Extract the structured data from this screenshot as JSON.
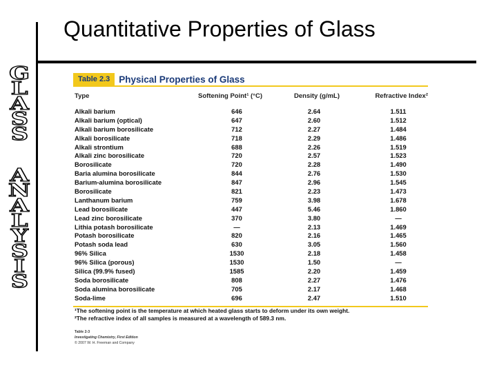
{
  "slide": {
    "title": "Quantitative Properties of Glass",
    "side_letters": [
      "G",
      "L",
      "A",
      "S",
      "S",
      "",
      "A",
      "N",
      "A",
      "L",
      "Y",
      "S",
      "I",
      "S"
    ]
  },
  "table": {
    "number": "Table 2.3",
    "title": "Physical Properties of Glass",
    "columns": [
      "Type",
      "Softening Point¹ (°C)",
      "Density (g/mL)",
      "Refractive Index²"
    ],
    "rows": [
      [
        "Alkali barium",
        "646",
        "2.64",
        "1.511"
      ],
      [
        "Alkali barium (optical)",
        "647",
        "2.60",
        "1.512"
      ],
      [
        "Alkali barium borosilicate",
        "712",
        "2.27",
        "1.484"
      ],
      [
        "Alkali borosilicate",
        "718",
        "2.29",
        "1.486"
      ],
      [
        "Alkali strontium",
        "688",
        "2.26",
        "1.519"
      ],
      [
        "Alkali zinc borosilicate",
        "720",
        "2.57",
        "1.523"
      ],
      [
        "Borosilicate",
        "720",
        "2.28",
        "1.490"
      ],
      [
        "Baria alumina borosilicate",
        "844",
        "2.76",
        "1.530"
      ],
      [
        "Barium-alumina borosilicate",
        "847",
        "2.96",
        "1.545"
      ],
      [
        "Borosilicate",
        "821",
        "2.23",
        "1.473"
      ],
      [
        "Lanthanum barium",
        "759",
        "3.98",
        "1.678"
      ],
      [
        "Lead borosilicate",
        "447",
        "5.46",
        "1.860"
      ],
      [
        "Lead zinc borosilicate",
        "370",
        "3.80",
        "—"
      ],
      [
        "Lithia potash borosilicate",
        "—",
        "2.13",
        "1.469"
      ],
      [
        "Potash borosilicate",
        "820",
        "2.16",
        "1.465"
      ],
      [
        "Potash soda lead",
        "630",
        "3.05",
        "1.560"
      ],
      [
        "96% Silica",
        "1530",
        "2.18",
        "1.458"
      ],
      [
        "96% Silica (porous)",
        "1530",
        "1.50",
        "—"
      ],
      [
        "Silica (99.9% fused)",
        "1585",
        "2.20",
        "1.459"
      ],
      [
        "Soda borosilicate",
        "808",
        "2.27",
        "1.476"
      ],
      [
        "Soda alumina borosilicate",
        "705",
        "2.17",
        "1.468"
      ],
      [
        "Soda-lime",
        "696",
        "2.47",
        "1.510"
      ]
    ],
    "footnotes": [
      "¹The softening point is the temperature at which heated glass starts to deform under its own weight.",
      "²The refractive index of all samples is measured at a wavelength of 589.3 nm."
    ],
    "source": {
      "label": "Table 2-3",
      "book": "Investigating Chemistry, First Edition",
      "copyright": "© 2007 W. H. Freeman and Company"
    }
  },
  "colors": {
    "accent_yellow": "#f2c81c",
    "title_blue": "#1a3a78"
  }
}
